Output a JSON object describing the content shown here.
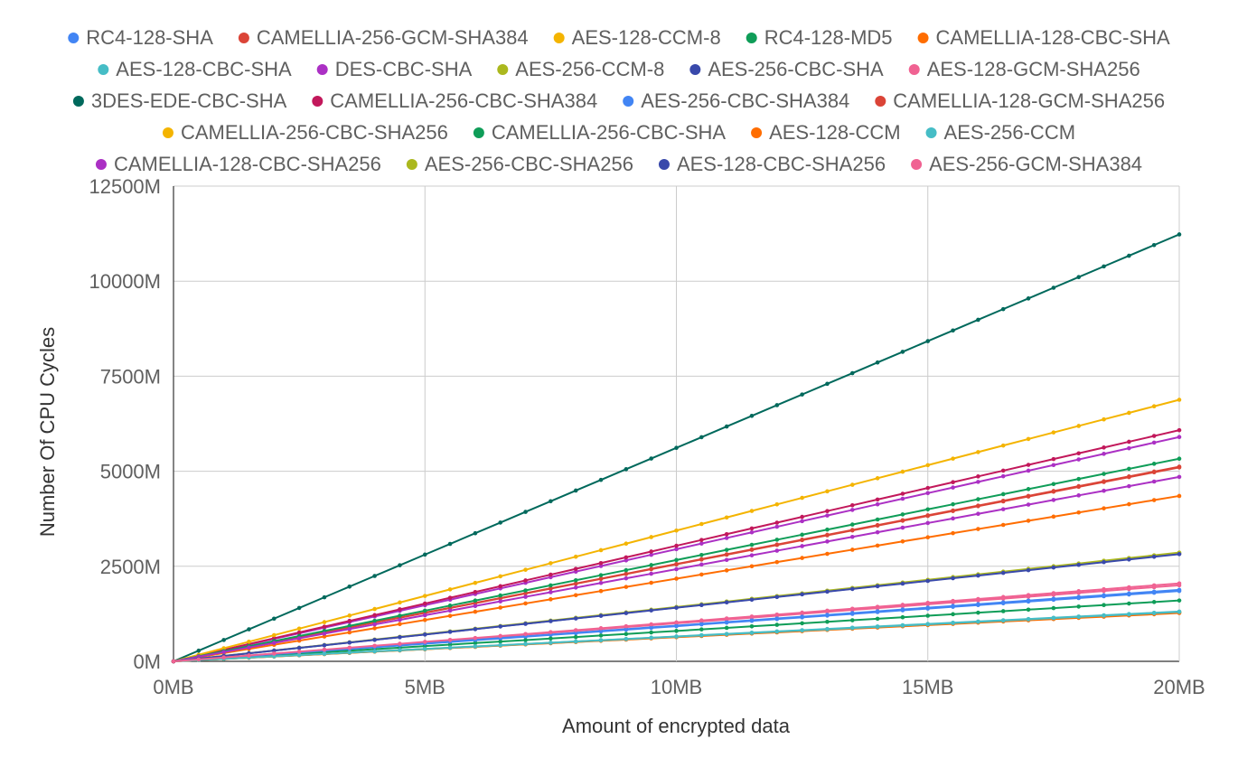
{
  "chart_data": {
    "type": "line",
    "title": "",
    "xlabel": "Amount of encrypted data",
    "ylabel": "Number Of CPU Cycles",
    "x_unit": "MB",
    "y_unit": "M",
    "xlim": [
      0,
      20
    ],
    "ylim": [
      0,
      12500
    ],
    "x_ticks": [
      0,
      5,
      10,
      15,
      20
    ],
    "x_tick_labels": [
      "0MB",
      "5MB",
      "10MB",
      "15MB",
      "20MB"
    ],
    "y_ticks": [
      0,
      2500,
      5000,
      7500,
      10000,
      12500
    ],
    "y_tick_labels": [
      "0M",
      "2500M",
      "5000M",
      "7500M",
      "10000M",
      "12500M"
    ],
    "grid": true,
    "legend_position": "top",
    "x_step": 0.5,
    "series": [
      {
        "name": "RC4-128-SHA",
        "color": "#4285F4",
        "end_value": 1850
      },
      {
        "name": "CAMELLIA-256-GCM-SHA384",
        "color": "#DB4437",
        "end_value": 5100
      },
      {
        "name": "AES-128-CCM-8",
        "color": "#F4B400",
        "end_value": 1280
      },
      {
        "name": "RC4-128-MD5",
        "color": "#0F9D58",
        "end_value": 1600
      },
      {
        "name": "CAMELLIA-128-CBC-SHA",
        "color": "#FF6D00",
        "end_value": 4350
      },
      {
        "name": "AES-128-CBC-SHA",
        "color": "#46BDC6",
        "end_value": 1310
      },
      {
        "name": "DES-CBC-SHA",
        "color": "#AB30C4",
        "end_value": 5900
      },
      {
        "name": "AES-256-CCM-8",
        "color": "#ABB81E",
        "end_value": 1290
      },
      {
        "name": "AES-256-CBC-SHA",
        "color": "#3949AB",
        "end_value": 2830
      },
      {
        "name": "AES-128-GCM-SHA256",
        "color": "#F06292",
        "end_value": 2000
      },
      {
        "name": "3DES-EDE-CBC-SHA",
        "color": "#00695C",
        "end_value": 11230
      },
      {
        "name": "CAMELLIA-256-CBC-SHA384",
        "color": "#C2185B",
        "end_value": 6080
      },
      {
        "name": "AES-256-CBC-SHA384",
        "color": "#4285F4",
        "end_value": 1880
      },
      {
        "name": "CAMELLIA-128-GCM-SHA256",
        "color": "#DB4437",
        "end_value": 5120
      },
      {
        "name": "CAMELLIA-256-CBC-SHA256",
        "color": "#F4B400",
        "end_value": 6880
      },
      {
        "name": "CAMELLIA-256-CBC-SHA",
        "color": "#0F9D58",
        "end_value": 5330
      },
      {
        "name": "AES-128-CCM",
        "color": "#FF6D00",
        "end_value": 1270
      },
      {
        "name": "AES-256-CCM",
        "color": "#46BDC6",
        "end_value": 1300
      },
      {
        "name": "CAMELLIA-128-CBC-SHA256",
        "color": "#AB30C4",
        "end_value": 4850
      },
      {
        "name": "AES-256-CBC-SHA256",
        "color": "#ABB81E",
        "end_value": 2860
      },
      {
        "name": "AES-128-CBC-SHA256",
        "color": "#3949AB",
        "end_value": 2820
      },
      {
        "name": "AES-256-GCM-SHA384",
        "color": "#F06292",
        "end_value": 2050
      }
    ]
  }
}
